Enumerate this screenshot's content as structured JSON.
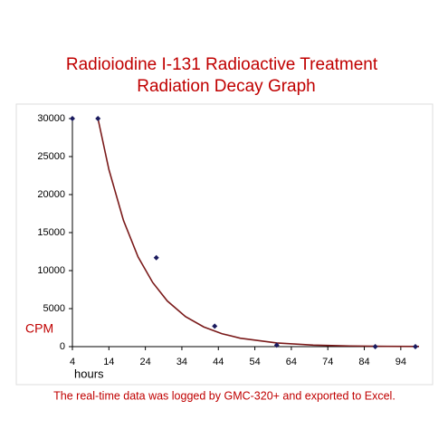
{
  "chart_data": {
    "type": "scatter",
    "title": "Radioiodine I-131 Radioactive Treatment",
    "subtitle": "Radiation Decay Graph",
    "y_label": "CPM",
    "x_label": "hours",
    "footnote": "The real-time data was logged by GMC-320+ and exported to Excel.",
    "x": [
      4,
      11,
      27,
      43,
      60,
      87,
      98
    ],
    "values": [
      30000,
      30000,
      11700,
      2700,
      200,
      0,
      0
    ],
    "color": "#1a1a5e",
    "trendline": {
      "color": "#7a1a1a",
      "x": [
        11,
        14,
        18,
        22,
        26,
        30,
        35,
        40,
        45,
        50,
        60,
        70,
        80,
        90,
        99
      ],
      "values": [
        30000,
        23300,
        16600,
        11800,
        8440,
        6010,
        3950,
        2590,
        1700,
        1110,
        480,
        205,
        88,
        38,
        18
      ]
    },
    "xlim": [
      4,
      99
    ],
    "xticks": [
      4,
      14,
      24,
      34,
      44,
      54,
      64,
      74,
      84,
      94
    ],
    "ylim": [
      0,
      30000
    ],
    "yticks": [
      0,
      5000,
      10000,
      15000,
      20000,
      25000,
      30000
    ],
    "grid": false
  }
}
